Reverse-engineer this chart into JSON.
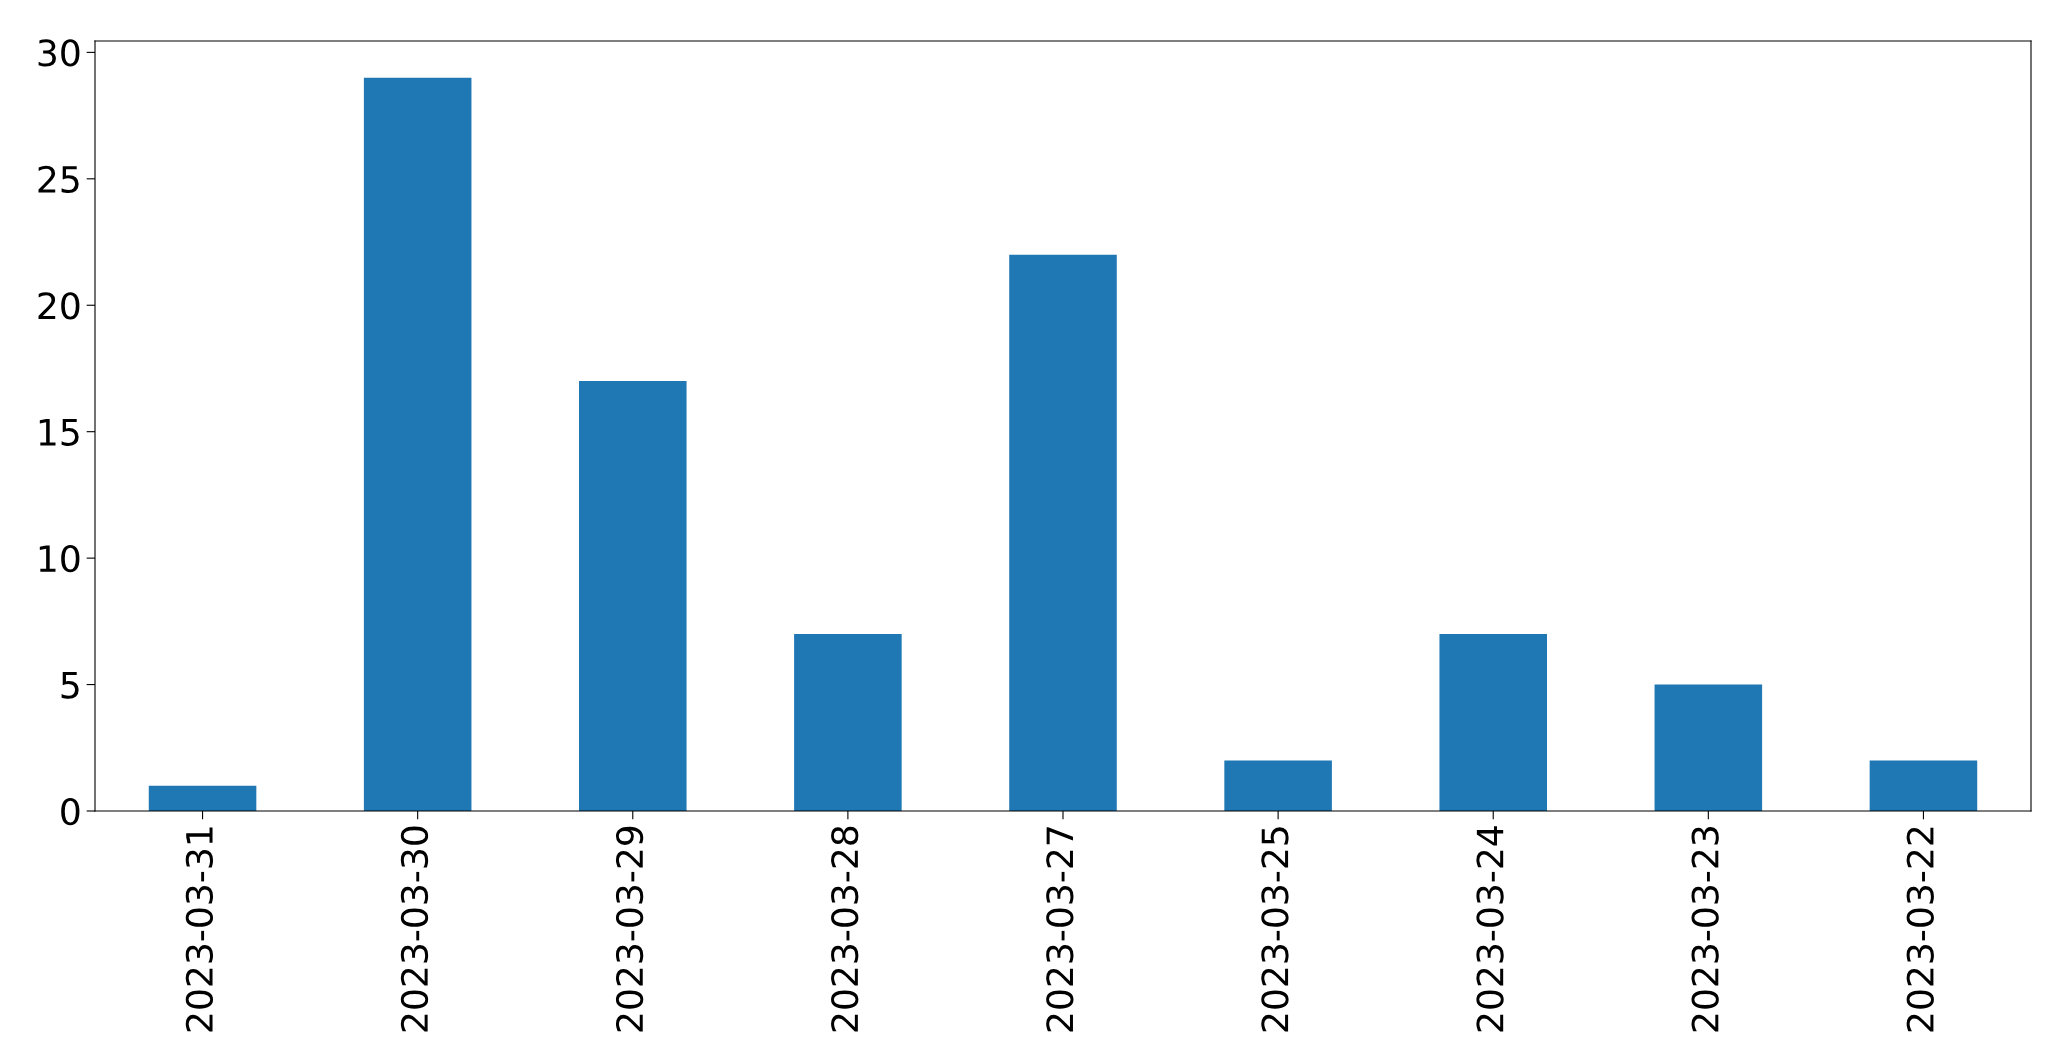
{
  "chart_data": {
    "type": "bar",
    "categories": [
      "2023-03-31",
      "2023-03-30",
      "2023-03-29",
      "2023-03-28",
      "2023-03-27",
      "2023-03-25",
      "2023-03-24",
      "2023-03-23",
      "2023-03-22"
    ],
    "values": [
      1,
      29,
      17,
      7,
      22,
      2,
      7,
      5,
      2
    ],
    "color": "#1f77b4",
    "ylim": [
      0,
      30.45
    ],
    "yticks": [
      0,
      5,
      10,
      15,
      20,
      25,
      30
    ],
    "grid": false,
    "legend": false
  }
}
